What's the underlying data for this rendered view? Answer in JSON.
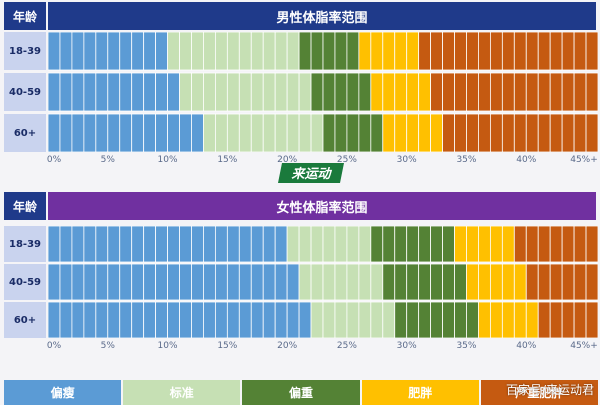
{
  "chart_data": [
    {
      "type": "bar",
      "title": "男性体脂率范围",
      "row_header": "年龄",
      "categories": [
        "18-39",
        "40-59",
        "60+"
      ],
      "x_ticks": [
        "0%",
        "5%",
        "10%",
        "15%",
        "20%",
        "25%",
        "30%",
        "35%",
        "40%",
        "45%+"
      ],
      "xlim": [
        0,
        46
      ],
      "segment_unit": 1,
      "series": [
        {
          "name": "偏瘦",
          "values": [
            10,
            11,
            13
          ]
        },
        {
          "name": "标准",
          "values": [
            11,
            11,
            10
          ]
        },
        {
          "name": "偏重",
          "values": [
            5,
            5,
            5
          ]
        },
        {
          "name": "肥胖",
          "values": [
            5,
            5,
            5
          ]
        },
        {
          "name": "严重肥胖",
          "values": [
            15,
            14,
            13
          ]
        }
      ],
      "grid": true
    },
    {
      "type": "bar",
      "title": "女性体脂率范围",
      "row_header": "年龄",
      "categories": [
        "18-39",
        "40-59",
        "60+"
      ],
      "x_ticks": [
        "0%",
        "5%",
        "10%",
        "15%",
        "20%",
        "25%",
        "30%",
        "35%",
        "40%",
        "45%+"
      ],
      "xlim": [
        0,
        46
      ],
      "segment_unit": 1,
      "series": [
        {
          "name": "偏瘦",
          "values": [
            20,
            21,
            22
          ]
        },
        {
          "name": "标准",
          "values": [
            7,
            7,
            7
          ]
        },
        {
          "name": "偏重",
          "values": [
            7,
            7,
            7
          ]
        },
        {
          "name": "肥胖",
          "values": [
            5,
            5,
            5
          ]
        },
        {
          "name": "严重肥胖",
          "values": [
            7,
            6,
            5
          ]
        }
      ],
      "grid": true
    }
  ],
  "legend": [
    "偏瘦",
    "标准",
    "偏重",
    "肥胖",
    "严重肥胖"
  ],
  "colors": {
    "偏瘦": "#5b9bd5",
    "标准": "#c6e0b4",
    "偏重": "#548235",
    "肥胖": "#ffc000",
    "严重肥胖": "#c55a11",
    "male_header": "#1f3a8a",
    "female_header": "#7030a0"
  },
  "logo_text": "来运动",
  "watermark": "百家号/来运动君"
}
